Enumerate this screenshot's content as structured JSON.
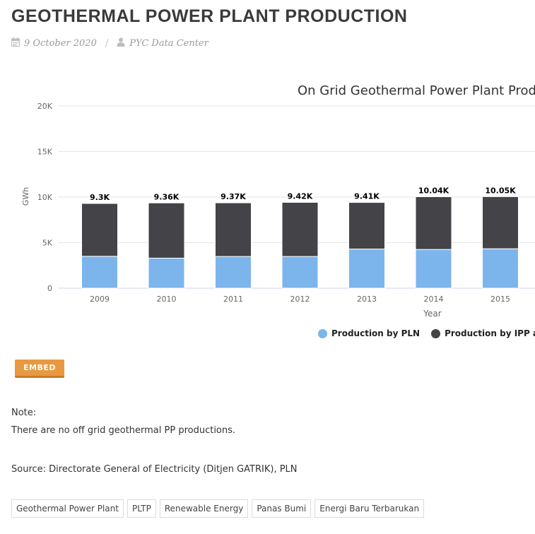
{
  "page": {
    "title": "GEOTHERMAL POWER PLANT PRODUCTION",
    "date": "9 October 2020",
    "author": "PYC Data Center",
    "separator": "/",
    "embed_label": "EMBED",
    "note_label": "Note:",
    "note_text": "There are no off grid geothermal PP productions.",
    "source": "Source: Directorate General of Electricity (Ditjen GATRIK), PLN",
    "tags": [
      "Geothermal Power Plant",
      "PLTP",
      "Renewable Energy",
      "Panas Bumi",
      "Energi Baru Terbarukan"
    ],
    "icons": {
      "date": "calendar-icon",
      "author": "user-icon"
    },
    "colors": {
      "accent": "#e8993f",
      "pln": "#7cb5ec",
      "ipp": "#434348"
    }
  },
  "chart_data": {
    "type": "bar",
    "stacked": true,
    "title": "On Grid Geothermal Power Plant Produ",
    "xlabel": "Year",
    "ylabel": "GWh",
    "ylim": [
      0,
      20000
    ],
    "yticks": [
      0,
      5000,
      10000,
      15000,
      20000
    ],
    "ytick_labels": [
      "0",
      "5K",
      "10K",
      "15K",
      "20K"
    ],
    "categories": [
      "2009",
      "2010",
      "2011",
      "2012",
      "2013",
      "2014",
      "2015"
    ],
    "series": [
      {
        "name": "Production by PLN",
        "color": "#7cb5ec",
        "values": [
          3500,
          3300,
          3480,
          3480,
          4300,
          4250,
          4330
        ]
      },
      {
        "name": "Production by IPP and Pl",
        "color": "#434348",
        "values": [
          5800,
          6060,
          5890,
          5940,
          5110,
          5790,
          5720
        ]
      }
    ],
    "totals_labels": [
      "9.3K",
      "9.36K",
      "9.37K",
      "9.42K",
      "9.41K",
      "10.04K",
      "10.05K"
    ],
    "grid": true,
    "legend_position": "bottom"
  }
}
